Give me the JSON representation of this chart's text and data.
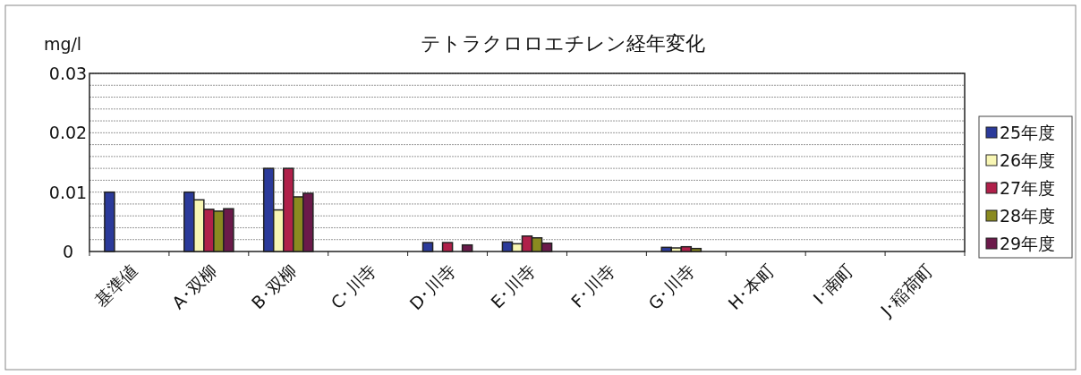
{
  "chart_data": {
    "type": "bar",
    "title": "テトラクロロエチレン経年変化",
    "ylabel": "mg/l",
    "categories": [
      "基準値",
      "A･双柳",
      "B･双柳",
      "C･川寺",
      "D･川寺",
      "E･川寺",
      "F･川寺",
      "G･川寺",
      "H･本町",
      "I･南町",
      "J･稲荷町"
    ],
    "series": [
      {
        "name": "25年度",
        "color": "#2b3a9a",
        "values": [
          0.01,
          0.01,
          0.014,
          null,
          0.0015,
          0.0016,
          null,
          0.0007,
          null,
          null,
          null
        ]
      },
      {
        "name": "26年度",
        "color": "#f8f6b4",
        "values": [
          null,
          0.0087,
          0.007,
          null,
          null,
          0.0013,
          null,
          0.0006,
          null,
          null,
          null
        ]
      },
      {
        "name": "27年度",
        "color": "#b0204a",
        "values": [
          null,
          0.0071,
          0.014,
          null,
          0.0015,
          0.0026,
          null,
          0.0008,
          null,
          null,
          null
        ]
      },
      {
        "name": "28年度",
        "color": "#8a8a20",
        "values": [
          null,
          0.0068,
          0.0092,
          null,
          null,
          0.0023,
          null,
          0.0005,
          null,
          null,
          null
        ]
      },
      {
        "name": "29年度",
        "color": "#6b1a4a",
        "values": [
          null,
          0.0072,
          0.0098,
          null,
          0.0011,
          0.0014,
          null,
          null,
          null,
          null,
          null
        ]
      }
    ],
    "ylim": [
      0,
      0.03
    ],
    "yticks": [
      0,
      {
        "value": 0.002,
        "label": null
      },
      {
        "value": 0.004,
        "label": null
      },
      {
        "value": 0.006,
        "label": null
      },
      {
        "value": 0.008,
        "label": null
      },
      0.01,
      {
        "value": 0.012,
        "label": null
      },
      {
        "value": 0.014,
        "label": null
      },
      {
        "value": 0.016,
        "label": null
      },
      {
        "value": 0.018,
        "label": null
      },
      0.02,
      {
        "value": 0.022,
        "label": null
      },
      {
        "value": 0.024,
        "label": null
      },
      {
        "value": 0.026,
        "label": null
      },
      {
        "value": 0.028,
        "label": null
      },
      0.03
    ],
    "grid": "y",
    "legend": "right"
  }
}
